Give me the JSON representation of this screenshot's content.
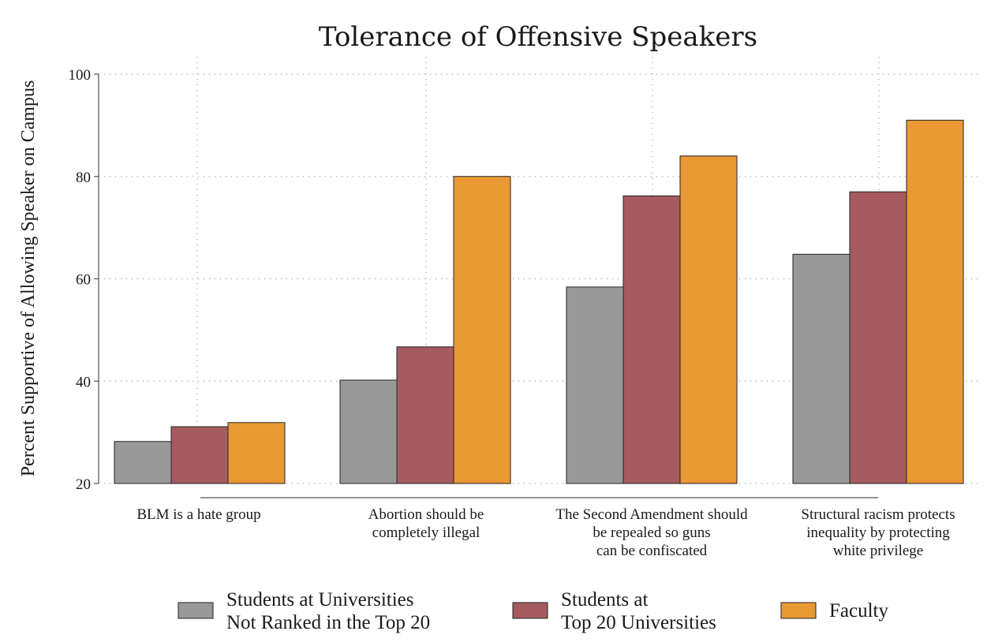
{
  "chart_data": {
    "type": "bar",
    "title": "Tolerance of Offensive Speakers",
    "xlabel": "",
    "ylabel": "Percent Supportive of Allowing Speaker on Campus",
    "ylim": [
      20,
      100
    ],
    "yticks": [
      "20",
      "40",
      "60",
      "80",
      "100"
    ],
    "grid": true,
    "categories": [
      "BLM is a hate group",
      "Abortion should be completely illegal",
      "The Second Amendment should be repealed so guns can be confiscated",
      "Structural racism protects inequality by protecting white privilege"
    ],
    "category_lines": [
      [
        "BLM is a hate group"
      ],
      [
        "Abortion should be",
        "completely illegal"
      ],
      [
        "The Second Amendment should",
        "be repealed so guns",
        "can be confiscated"
      ],
      [
        "Structural racism protects",
        "inequality by protecting",
        "white privilege"
      ]
    ],
    "series": [
      {
        "name": "Students at Universities Not Ranked in the Top 20",
        "legend_lines": [
          "Students at Universities",
          "Not Ranked in the Top 20"
        ],
        "color": "#999999",
        "values": [
          28.2,
          40.2,
          58.4,
          64.8
        ]
      },
      {
        "name": "Students at Top 20 Universities",
        "legend_lines": [
          "Students at",
          "Top 20 Universities"
        ],
        "color": "#a65b60",
        "values": [
          31.1,
          46.7,
          76.2,
          77.0
        ]
      },
      {
        "name": "Faculty",
        "legend_lines": [
          "Faculty"
        ],
        "color": "#e99a35",
        "values": [
          31.9,
          80.0,
          84.0,
          91.0
        ]
      }
    ],
    "legend_position": "bottom"
  }
}
